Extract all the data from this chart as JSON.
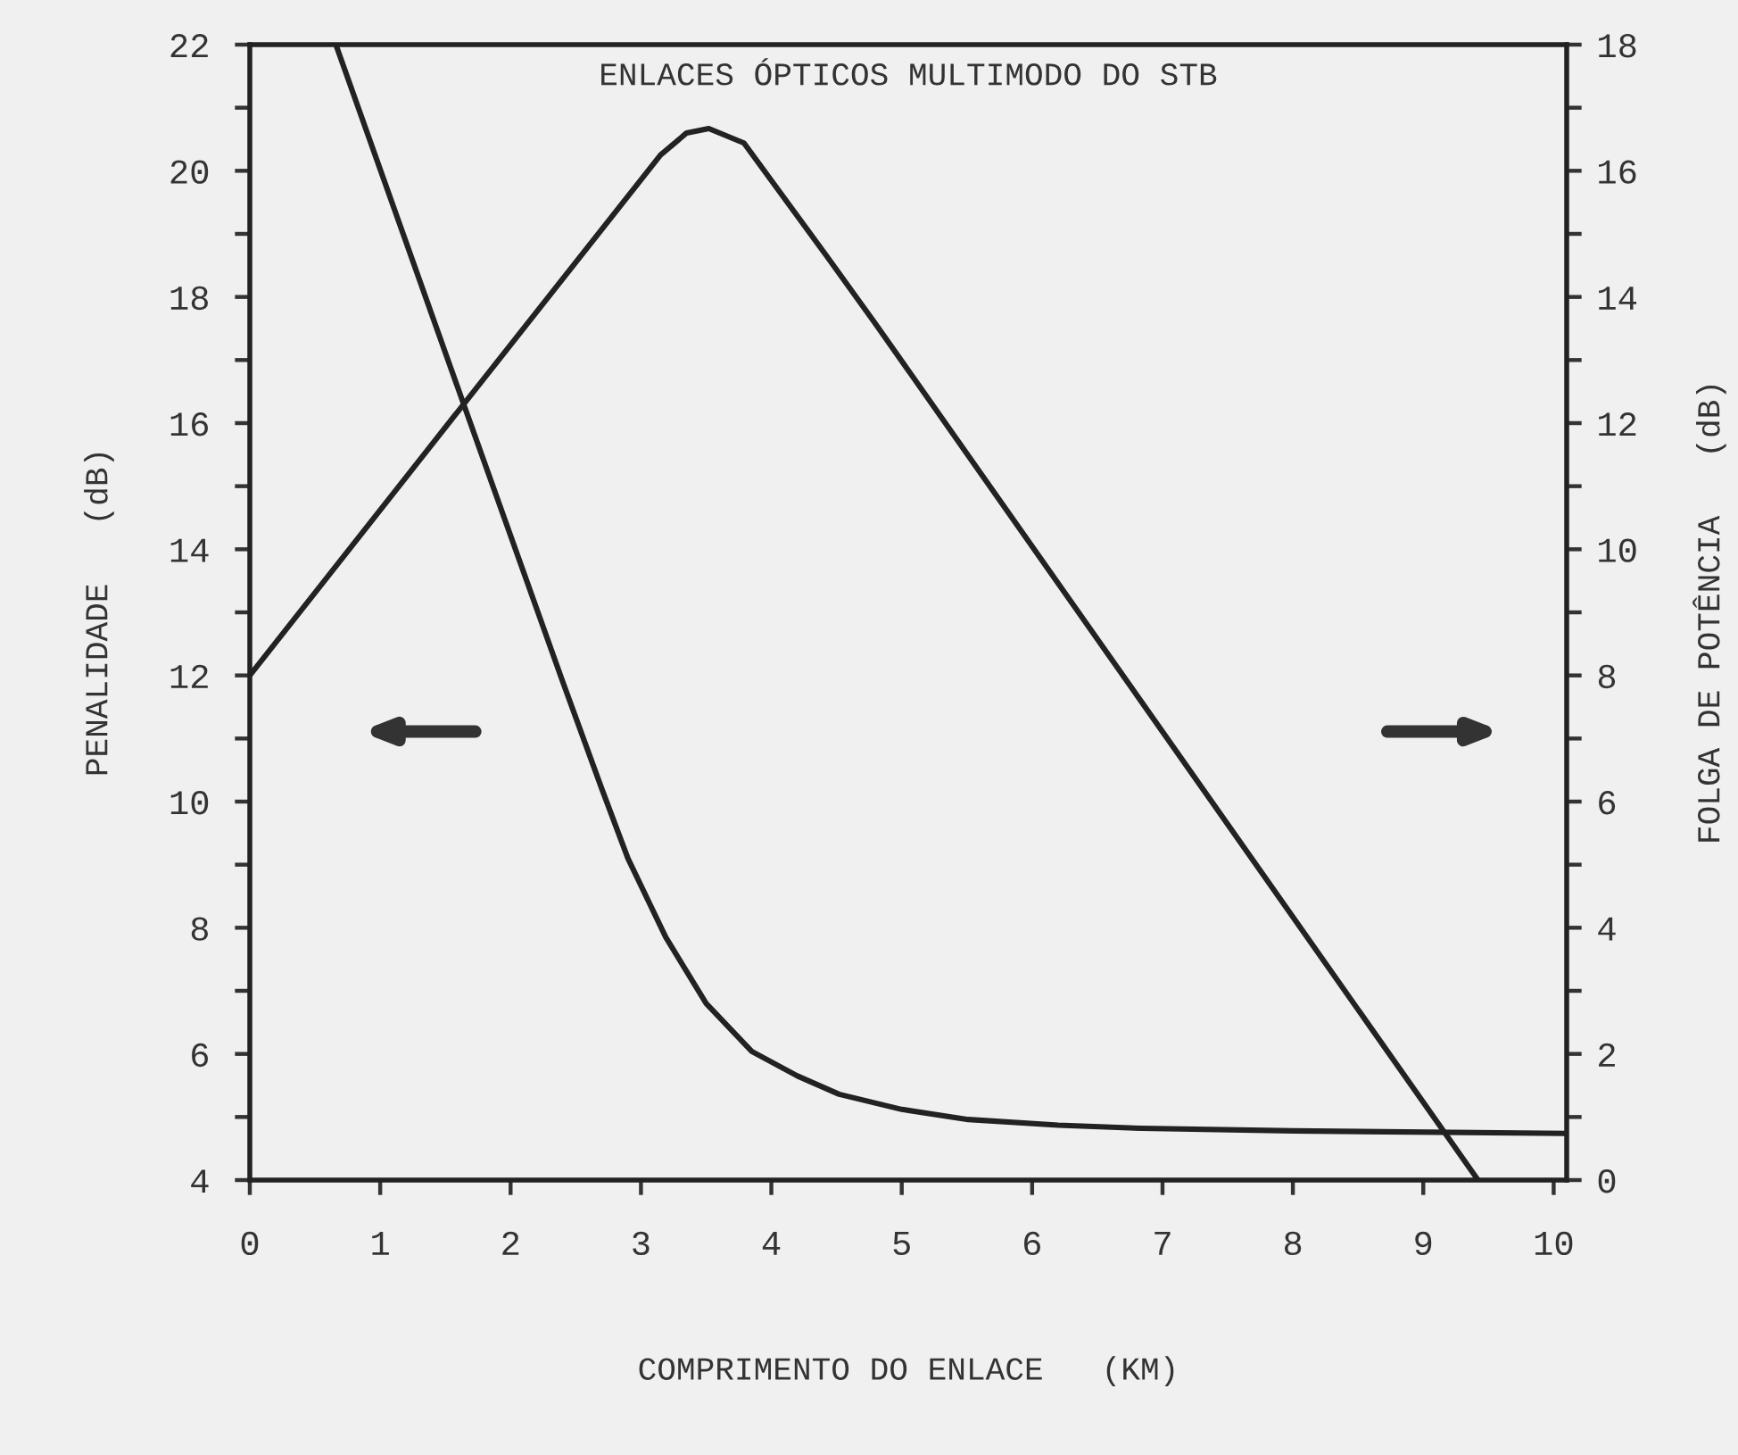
{
  "chart_data": {
    "type": "line",
    "title": "ENLACES ÓPTICOS MULTIMODO DO STB",
    "xlabel": "COMPRIMENTO DO ENLACE   (KM)",
    "ylabel": "PENALIDADE   (dB)",
    "y2label": "FOLGA DE POTÊNCIA   (dB)",
    "xlim": [
      0,
      10.1
    ],
    "xticks": [
      0,
      1,
      2,
      3,
      4,
      5,
      6,
      7,
      8,
      9,
      10
    ],
    "ylim": [
      4,
      22
    ],
    "yticks": [
      4,
      {
        "value": 5,
        "label": null
      },
      6,
      {
        "value": 7,
        "label": null
      },
      8,
      {
        "value": 9,
        "label": null
      },
      10,
      {
        "value": 11,
        "label": null
      },
      12,
      {
        "value": 13,
        "label": null
      },
      14,
      {
        "value": 15,
        "label": null
      },
      16,
      {
        "value": 17,
        "label": null
      },
      18,
      {
        "value": 19,
        "label": null
      },
      20,
      {
        "value": 21,
        "label": null
      },
      22
    ],
    "y2lim": [
      0,
      18
    ],
    "y2ticks": [
      0,
      {
        "value": 1,
        "label": null
      },
      2,
      {
        "value": 3,
        "label": null
      },
      4,
      {
        "value": 5,
        "label": null
      },
      6,
      {
        "value": 7,
        "label": null
      },
      8,
      {
        "value": 9,
        "label": null
      },
      10,
      {
        "value": 11,
        "label": null
      },
      12,
      {
        "value": 13,
        "label": null
      },
      14,
      {
        "value": 15,
        "label": null
      },
      16,
      {
        "value": 17,
        "label": null
      },
      18
    ],
    "marker": "none",
    "line_style": "solid",
    "series": [
      {
        "color": "#222222",
        "x": [
          0.66,
          1.64,
          2.4,
          2.7,
          2.9,
          3.19,
          3.5,
          3.85,
          4.2,
          4.52,
          5.0,
          5.51,
          6.2,
          6.84,
          8.0,
          10.1
        ],
        "values": [
          22,
          16.3,
          11.9,
          10.2,
          9.1,
          7.85,
          6.8,
          6.04,
          5.65,
          5.36,
          5.12,
          4.96,
          4.87,
          4.82,
          4.78,
          4.74
        ]
      },
      {
        "color": "#222222",
        "axis": "y2",
        "x": [
          0,
          1.64,
          3.15,
          3.35,
          3.52,
          3.79,
          4.42,
          4.79,
          9.42
        ],
        "values": [
          8.0,
          12.3,
          16.25,
          16.6,
          16.67,
          16.44,
          14.66,
          13.6,
          0
        ]
      }
    ]
  }
}
